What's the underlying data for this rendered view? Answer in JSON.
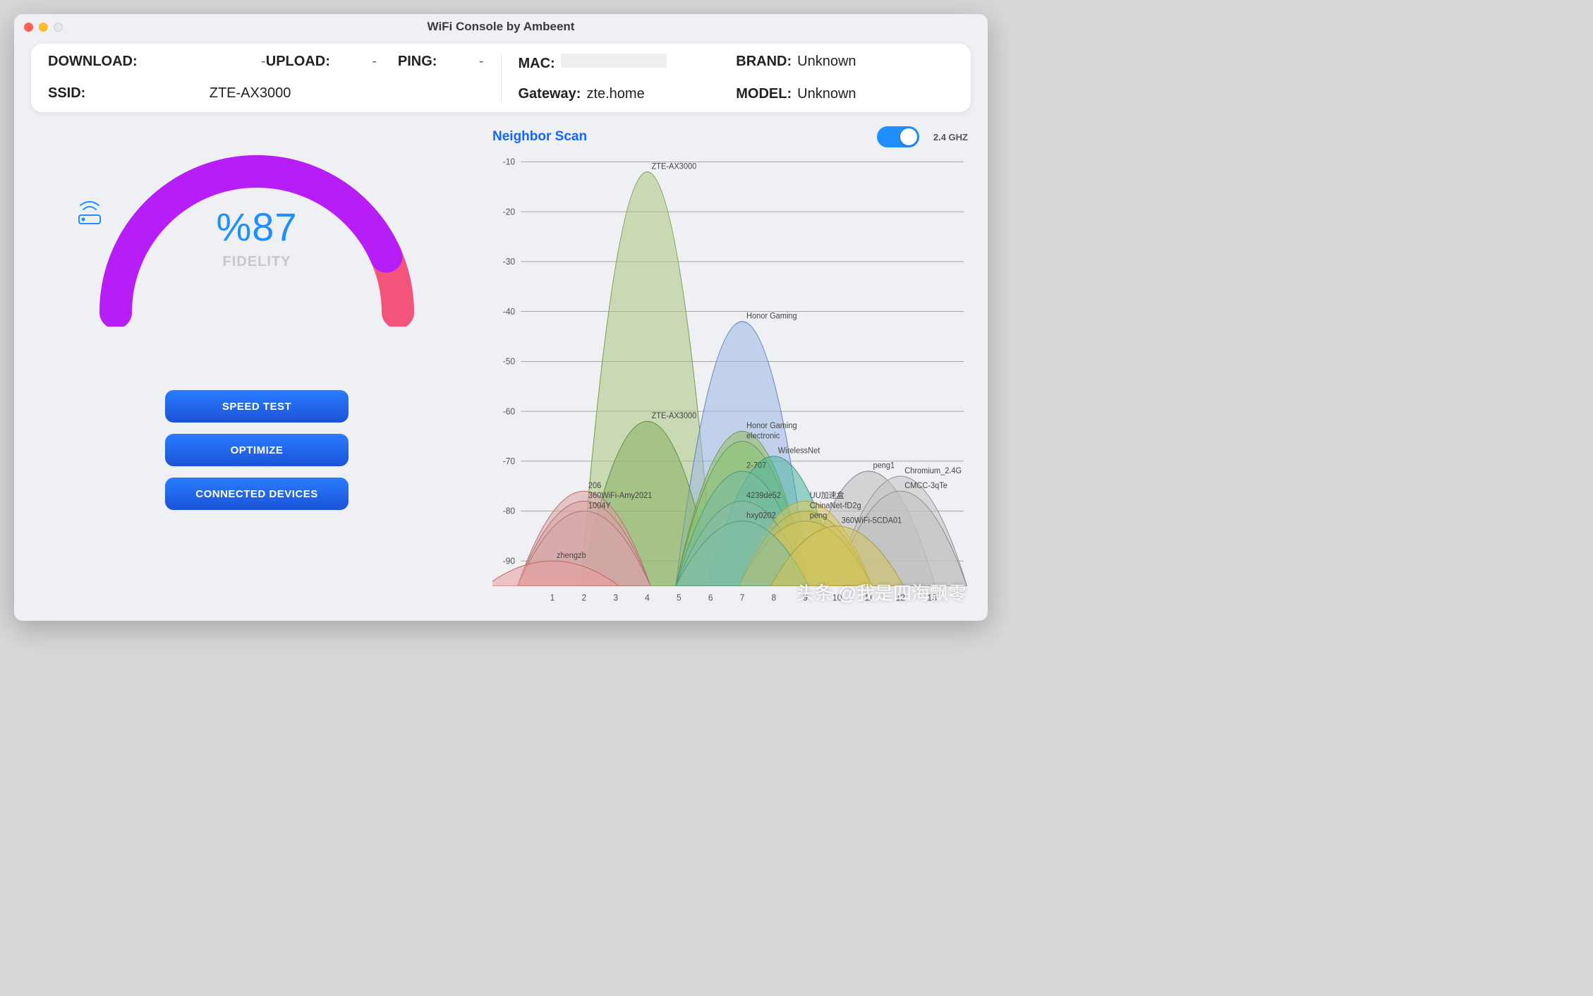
{
  "window": {
    "title": "WiFi Console by Ambeent",
    "traffic_light_colors": {
      "close": "#ff5f57",
      "min": "#ffbd2e",
      "max": "#e6e6e6"
    }
  },
  "info": {
    "download_label": "DOWNLOAD:",
    "download_value": "-",
    "upload_label": "UPLOAD:",
    "upload_value": "-",
    "ping_label": "PING:",
    "ping_value": "-",
    "ssid_label": "SSID:",
    "ssid_value": "ZTE-AX3000",
    "mac_label": "MAC:",
    "mac_value": "",
    "brand_label": "BRAND:",
    "brand_value": "Unknown",
    "gateway_label": "Gateway:",
    "gateway_value": "zte.home",
    "model_label": "MODEL:",
    "model_value": "Unknown"
  },
  "fidelity": {
    "percent_display": "%87",
    "percent_value": 87,
    "label": "FIDELITY",
    "gauge": {
      "track_color": "#f3547c",
      "fill_color": "#b71df7",
      "bg": "transparent",
      "stroke_width": 46
    }
  },
  "buttons": {
    "speed_test": "SPEED TEST",
    "optimize": "OPTIMIZE",
    "connected_devices": "CONNECTED DEVICES",
    "gradient_top": "#2a7cff",
    "gradient_bottom": "#1b53d6"
  },
  "scan": {
    "title": "Neighbor Scan",
    "band_label": "2.4 GHZ",
    "switch_on": true,
    "chart": {
      "y_min": -95,
      "y_max": -10,
      "y_ticks": [
        -10,
        -20,
        -30,
        -40,
        -50,
        -60,
        -70,
        -80,
        -90
      ],
      "x_min": 0,
      "x_max": 14,
      "x_ticks": [
        1,
        2,
        3,
        4,
        5,
        6,
        7,
        8,
        9,
        10,
        11,
        12,
        13
      ],
      "halfwidth_channels": 2.1,
      "grid_color": "#7a7a7a",
      "axis_fontsize": 12,
      "label_fontsize": 11,
      "background": "transparent",
      "networks": [
        {
          "name": "ZTE-AX3000",
          "channel": 4,
          "signal": -12,
          "fill": "#a9c77f",
          "stroke": "#6f9a3f"
        },
        {
          "name": "Honor Gaming",
          "channel": 7,
          "signal": -42,
          "fill": "#9fb8e4",
          "stroke": "#5b7cc2"
        },
        {
          "name": "ZTE-AX3000",
          "channel": 4,
          "signal": -62,
          "fill": "#88b060",
          "stroke": "#5f8a3e"
        },
        {
          "name": "Honor Gaming",
          "channel": 7,
          "signal": -64,
          "fill": "#93b964",
          "stroke": "#6d9845"
        },
        {
          "name": "electronic",
          "channel": 7,
          "signal": -66,
          "fill": "#88c270",
          "stroke": "#5c9a4c"
        },
        {
          "name": "WirelessNet",
          "channel": 8,
          "signal": -69,
          "fill": "#4fb7a0",
          "stroke": "#2f947f"
        },
        {
          "name": "2-707",
          "channel": 7,
          "signal": -72,
          "fill": "#7abca2",
          "stroke": "#4c9a7f"
        },
        {
          "name": "peng1",
          "channel": 11,
          "signal": -72,
          "fill": "#bcbcbc",
          "stroke": "#8a8a8a"
        },
        {
          "name": "Chromium_2.4G",
          "channel": 12,
          "signal": -73,
          "fill": "#c3c3c3",
          "stroke": "#8f8f8f"
        },
        {
          "name": "CMCC-3qTe",
          "channel": 12,
          "signal": -76,
          "fill": "#bfbfbf",
          "stroke": "#8d8d8d"
        },
        {
          "name": "206",
          "channel": 2,
          "signal": -76,
          "fill": "#dca0a0",
          "stroke": "#b86f6f"
        },
        {
          "name": "360WiFi-Amy2021",
          "channel": 2,
          "signal": -78,
          "fill": "#d6a4a4",
          "stroke": "#b07070"
        },
        {
          "name": "4239de52",
          "channel": 7,
          "signal": -78,
          "fill": "#86bca6",
          "stroke": "#5a9a80"
        },
        {
          "name": "UU加速盒",
          "channel": 9,
          "signal": -78,
          "fill": "#d8c85c",
          "stroke": "#b7a63a"
        },
        {
          "name": "1004Y",
          "channel": 2,
          "signal": -80,
          "fill": "#d4a6a6",
          "stroke": "#ad7272"
        },
        {
          "name": "ChinaNet-fD2g",
          "channel": 9,
          "signal": -80,
          "fill": "#cbbf5a",
          "stroke": "#a99b38"
        },
        {
          "name": "hxy0202",
          "channel": 7,
          "signal": -82,
          "fill": "#7fbfa4",
          "stroke": "#549b7d"
        },
        {
          "name": "peng",
          "channel": 9,
          "signal": -82,
          "fill": "#d2c55e",
          "stroke": "#ac9e3a"
        },
        {
          "name": "360WiFi-5CDA01",
          "channel": 10,
          "signal": -83,
          "fill": "#d0c35c",
          "stroke": "#aa9c39"
        },
        {
          "name": "zhengzb",
          "channel": 1,
          "signal": -90,
          "fill": "#e99f9f",
          "stroke": "#c46a6a"
        }
      ]
    }
  },
  "watermark": "头条 @我是四海飘零"
}
